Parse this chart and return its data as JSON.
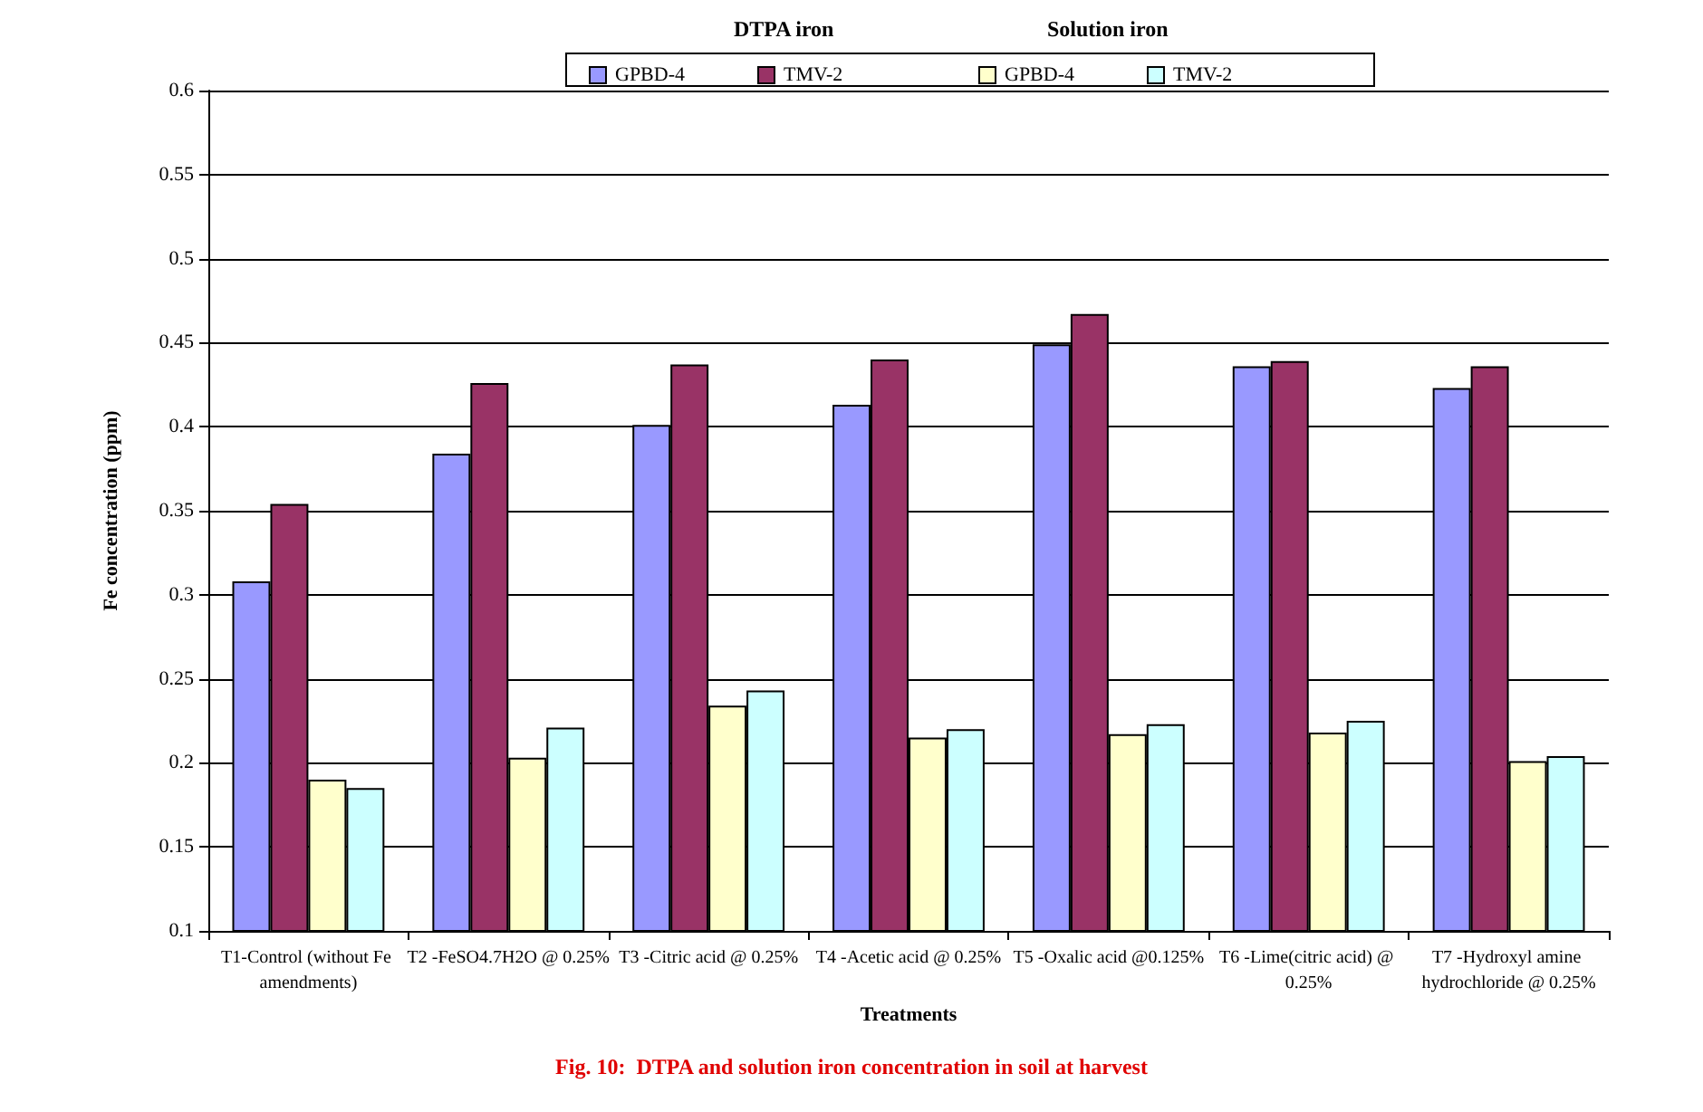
{
  "chart_data": {
    "type": "bar",
    "title": "Fig. 10:  DTPA and solution iron concentration in soil at harvest",
    "xlabel": "Treatments",
    "ylabel": "Fe concentration (ppm)",
    "annotations": [
      "DTPA iron",
      "Solution iron"
    ],
    "categories": [
      "T1-Control (without Fe amendments)",
      "T2 -FeSO4.7H2O @ 0.25%",
      "T3 -Citric acid @ 0.25%",
      "T4 -Acetic acid @ 0.25%",
      "T5 -Oxalic acid @0.125%",
      "T6 -Lime(citric acid) @ 0.25%",
      "T7 -Hydroxyl amine hydrochloride @ 0.25%"
    ],
    "series": [
      {
        "name": "GPBD-4",
        "color": "#9999ff",
        "values": [
          0.308,
          0.384,
          0.401,
          0.413,
          0.449,
          0.436,
          0.423
        ]
      },
      {
        "name": "TMV-2",
        "color": "#993366",
        "values": [
          0.354,
          0.426,
          0.437,
          0.44,
          0.467,
          0.439,
          0.436
        ]
      },
      {
        "name": "GPBD-4",
        "color": "#ffffcc",
        "values": [
          0.19,
          0.203,
          0.234,
          0.215,
          0.217,
          0.218,
          0.201
        ]
      },
      {
        "name": "TMV-2",
        "color": "#ccffff",
        "values": [
          0.185,
          0.221,
          0.243,
          0.22,
          0.223,
          0.225,
          0.204
        ]
      }
    ],
    "ylim": [
      0.1,
      0.6
    ],
    "yticks": [
      0.1,
      0.15,
      0.2,
      0.25,
      0.3,
      0.35,
      0.4,
      0.45,
      0.5,
      0.55,
      0.6
    ],
    "grid": "y",
    "legend": "top"
  }
}
